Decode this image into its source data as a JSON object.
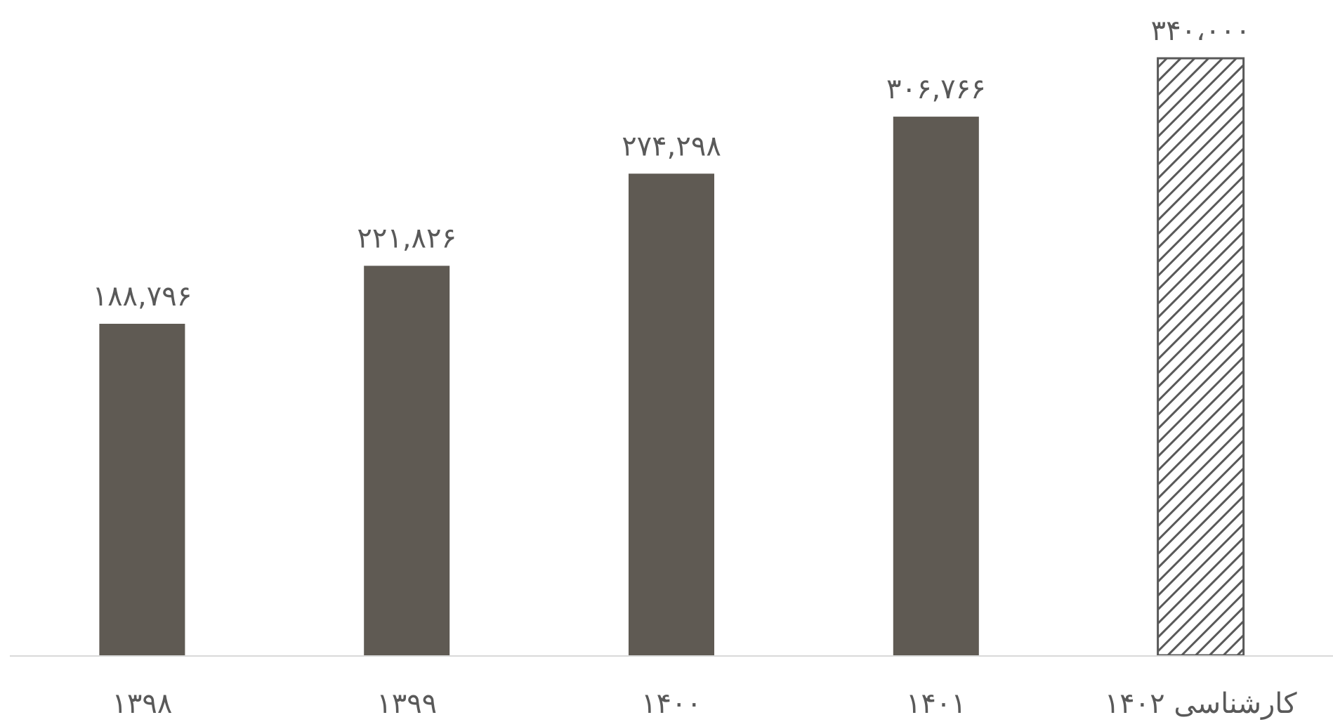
{
  "chart_data": {
    "type": "bar",
    "categories": [
      "۱۳۹۸",
      "۱۳۹۹",
      "۱۴۰۰",
      "۱۴۰۱",
      "کارشناسی ۱۴۰۲"
    ],
    "values": [
      188796,
      221826,
      274298,
      306766,
      340000
    ],
    "value_labels": [
      "۱۸۸,۷۹۶",
      "۲۲۱,۸۲۶",
      "۲۷۴,۲۹۸",
      "۳۰۶,۷۶۶",
      "۳۴۰،۰۰۰"
    ],
    "estimated": [
      false,
      false,
      false,
      false,
      true
    ],
    "title": "",
    "xlabel": "",
    "ylabel": "",
    "ylim": [
      0,
      340000
    ],
    "grid": false,
    "legend": "none",
    "colors": {
      "bar": "#5f5a53",
      "hatch": "#595959",
      "baseline": "#d9d9d9",
      "text": "#595959"
    }
  }
}
